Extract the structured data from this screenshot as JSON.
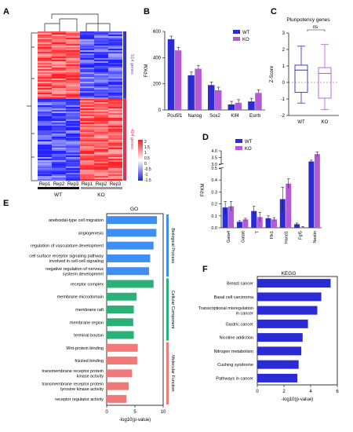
{
  "panels": {
    "A": "A",
    "B": "B",
    "C": "C",
    "D": "D",
    "E": "E",
    "F": "F"
  },
  "colors": {
    "wt": "#2b2bd6",
    "ko": "#b45ad6",
    "bio": "#3f8ef0",
    "cell": "#2bb07a",
    "mol": "#f07a7a",
    "kegg": "#2b2bd6",
    "heat_hi": "#e8202a",
    "heat_lo": "#2424d6"
  },
  "heatmap": {
    "samples": [
      "Rep1",
      "Rep2",
      "Rep3",
      "Rep1",
      "Rep2",
      "Rep3"
    ],
    "groups": [
      "WT",
      "KO"
    ],
    "clusters": [
      "514 genes",
      "424 genes"
    ],
    "scale_ticks": [
      "2",
      "1.5",
      "1",
      "0.5",
      "0",
      "-0.5",
      "-1",
      "-1.5"
    ]
  },
  "chart_data": [
    {
      "panel": "B",
      "type": "bar",
      "categories": [
        "Pou5f1",
        "Nanog",
        "Sox2",
        "Klf4",
        "Esrrb"
      ],
      "series": [
        {
          "name": "WT",
          "values": [
            540,
            265,
            190,
            42,
            65
          ]
        },
        {
          "name": "KO",
          "values": [
            455,
            315,
            150,
            55,
            130
          ]
        }
      ],
      "ylabel": "FPKM",
      "ylim": [
        0,
        600
      ],
      "yticks": [
        0,
        200,
        400,
        600
      ],
      "legend": "top-right"
    },
    {
      "panel": "C",
      "type": "box",
      "title": "Pluripotency genes",
      "categories": [
        "WT",
        "KO"
      ],
      "boxes": [
        {
          "name": "WT",
          "min": -1.25,
          "q1": -0.6,
          "median": 0.75,
          "q3": 1.05,
          "max": 2.2
        },
        {
          "name": "KO",
          "min": -1.65,
          "q1": -0.95,
          "median": 0.55,
          "q3": 0.9,
          "max": 2.3
        }
      ],
      "ylabel": "Z-Score",
      "ylim": [
        -2,
        3
      ],
      "yticks": [
        -2,
        -1,
        0,
        1,
        2,
        3
      ],
      "annotation": "ns"
    },
    {
      "panel": "D",
      "type": "bar",
      "categories": [
        "Gata4",
        "Gata6",
        "T",
        "Flk1",
        "Hand1",
        "Fgf5",
        "Nestin"
      ],
      "series": [
        {
          "name": "WT",
          "values": [
            0.17,
            0.05,
            0.14,
            0.08,
            0.24,
            0.03,
            3.2
          ]
        },
        {
          "name": "KO",
          "values": [
            0.18,
            0.07,
            0.09,
            0.07,
            0.37,
            0.005,
            3.75
          ]
        }
      ],
      "errors": [
        {
          "name": "WT",
          "values": [
            0.05,
            0.01,
            0.04,
            0.02,
            0.1,
            0.01,
            0.1
          ]
        },
        {
          "name": "KO",
          "values": [
            0.04,
            0.01,
            0.04,
            0.015,
            0.04,
            0.005,
            0.15
          ]
        }
      ],
      "ylabel": "FPKM",
      "yticks_lower": [
        "0.0",
        "0.1",
        "0.2",
        "0.3",
        "0.4",
        "0.5"
      ],
      "yticks_upper": [
        "3.0",
        "3.5",
        "4.0"
      ],
      "axis_break": [
        0.5,
        3.0
      ],
      "legend": "top-left"
    },
    {
      "panel": "E",
      "type": "bar",
      "orientation": "horizontal",
      "title": "GO",
      "categories": [
        [
          "aneboidal-type cell migration"
        ],
        [
          "angiogenesis"
        ],
        [
          "regulation of vasculature development"
        ],
        [
          "cell surface receptor signaling pathway",
          "involved in cell-cell signaling"
        ],
        [
          "negative regulation of nervous",
          "systerm development"
        ],
        [
          "receptor complex"
        ],
        [
          "membrane microdomain"
        ],
        [
          "membrane raft"
        ],
        [
          "membrane region"
        ],
        [
          "terminal bouton"
        ],
        [
          "Wnt-protein binding"
        ],
        [
          "frizzled binding"
        ],
        [
          "transmembrane receptor protein",
          "kinase activity"
        ],
        [
          "transmembrane receptor protein",
          "tyrosine kinase activity"
        ],
        [
          "receptor regulator activity"
        ]
      ],
      "values": [
        8.9,
        8.8,
        8.3,
        7.7,
        7.5,
        8.3,
        5.3,
        4.8,
        4.7,
        4.8,
        5.5,
        5.4,
        4.5,
        3.9,
        3.5
      ],
      "groups": [
        {
          "label": "Biological Process",
          "count": 5,
          "color": "#3f8ef0"
        },
        {
          "label": "Cellular Component",
          "count": 5,
          "color": "#2bb07a"
        },
        {
          "label": "Molecular Function",
          "count": 5,
          "color": "#f07a7a"
        }
      ],
      "xlabel": "-log10(p-value)",
      "xlim": [
        0,
        10
      ],
      "xticks": [
        0,
        5,
        10
      ]
    },
    {
      "panel": "F",
      "type": "bar",
      "orientation": "horizontal",
      "title": "KEGG",
      "categories": [
        [
          "Breast cancer"
        ],
        [
          "Basal cell carcinoma"
        ],
        [
          "Transcriptional misregulation",
          "in cancer"
        ],
        [
          "Gastric cancer"
        ],
        [
          "Nicotine addiction"
        ],
        [
          "Nitrogen metabolism"
        ],
        [
          "Cushing syndrome"
        ],
        [
          "Pathways in cancer"
        ]
      ],
      "values": [
        5.5,
        4.8,
        4.5,
        3.8,
        3.4,
        3.3,
        3.1,
        3.0
      ],
      "xlabel": "-log10(p-value)",
      "xlim": [
        0,
        6
      ],
      "xticks": [
        0,
        2,
        4,
        6
      ]
    }
  ]
}
